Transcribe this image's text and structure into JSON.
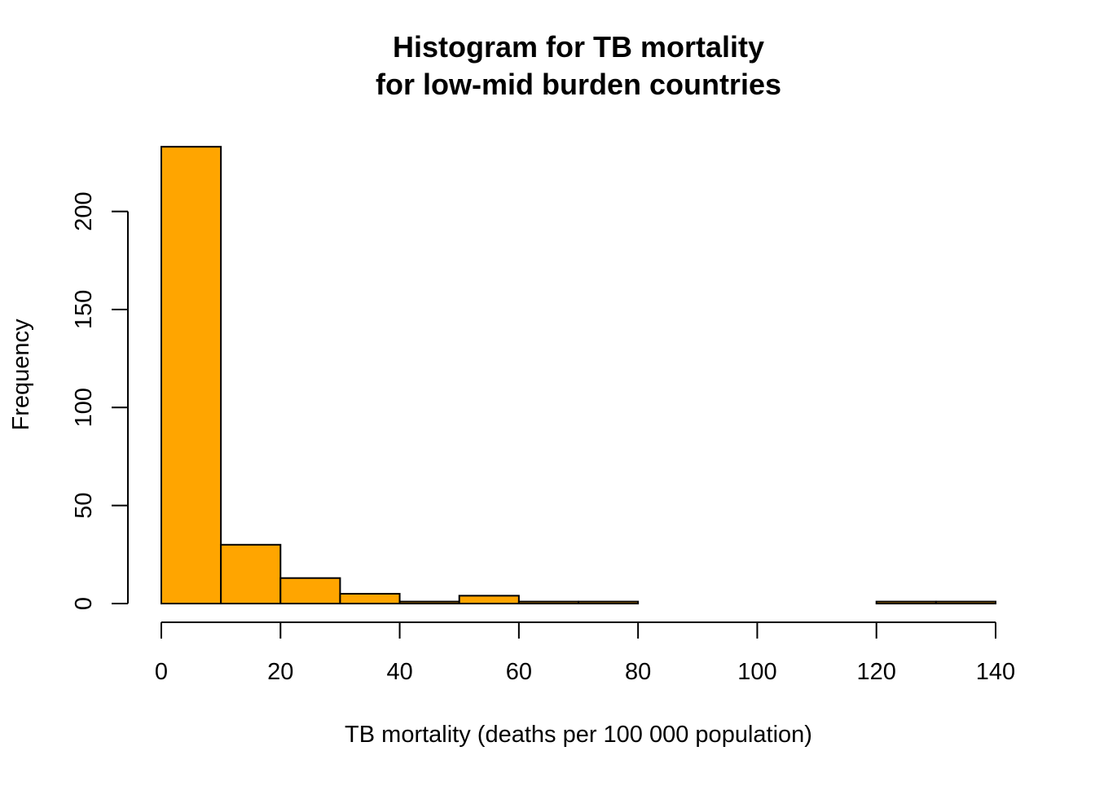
{
  "chart_data": {
    "type": "bar",
    "title": [
      "Histogram for TB mortality",
      "for low-mid burden countries"
    ],
    "xlabel": "TB mortality (deaths per 100 000 population)",
    "ylabel": "Frequency",
    "bins": [
      {
        "start": 0,
        "end": 10,
        "count": 233
      },
      {
        "start": 10,
        "end": 20,
        "count": 30
      },
      {
        "start": 20,
        "end": 30,
        "count": 13
      },
      {
        "start": 30,
        "end": 40,
        "count": 5
      },
      {
        "start": 40,
        "end": 50,
        "count": 1
      },
      {
        "start": 50,
        "end": 60,
        "count": 4
      },
      {
        "start": 60,
        "end": 70,
        "count": 1
      },
      {
        "start": 70,
        "end": 80,
        "count": 1
      },
      {
        "start": 80,
        "end": 90,
        "count": 0
      },
      {
        "start": 90,
        "end": 100,
        "count": 0
      },
      {
        "start": 100,
        "end": 110,
        "count": 0
      },
      {
        "start": 110,
        "end": 120,
        "count": 0
      },
      {
        "start": 120,
        "end": 130,
        "count": 1
      },
      {
        "start": 130,
        "end": 140,
        "count": 1
      }
    ],
    "xlim": [
      0,
      140
    ],
    "ylim": [
      0,
      233
    ],
    "x_ticks": [
      0,
      20,
      40,
      60,
      80,
      100,
      120,
      140
    ],
    "y_ticks": [
      0,
      50,
      100,
      150,
      200
    ],
    "bar_color": "#FFA500",
    "bar_stroke": "#000000",
    "grid": false
  }
}
